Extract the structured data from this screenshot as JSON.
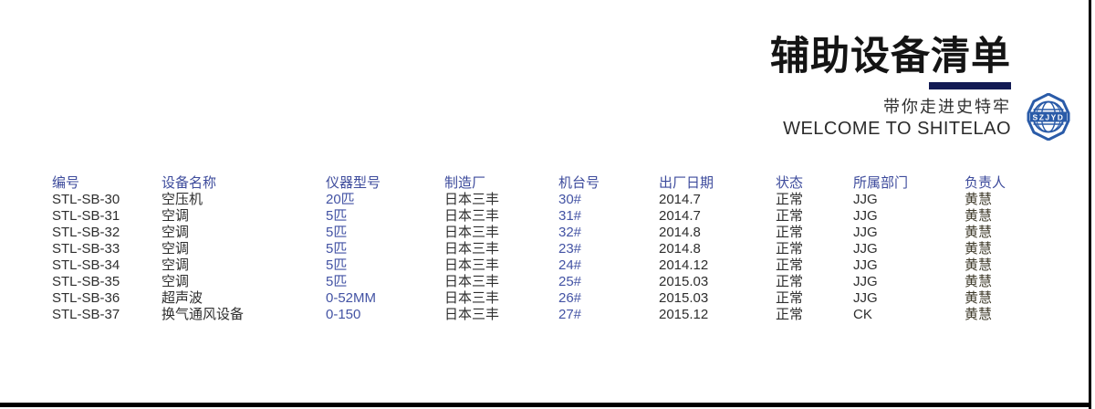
{
  "header": {
    "title": "辅助设备清单",
    "tagline_cn": "带你走进史特牢",
    "tagline_en": "WELCOME TO SHITELAO",
    "logo_text": "SZJYD"
  },
  "colors": {
    "accent_navy": "#131b54",
    "column_header_blue": "#3d4b9c",
    "value_blue": "#4353a4",
    "text_dark": "#2e2e2e",
    "owner_text": "#3e3a2a",
    "logo_blue": "#2a5ba8",
    "border_black": "#000000"
  },
  "table": {
    "columns": [
      {
        "key": "id",
        "label": "编号"
      },
      {
        "key": "name",
        "label": "设备名称"
      },
      {
        "key": "model",
        "label": "仪器型号"
      },
      {
        "key": "maker",
        "label": "制造厂"
      },
      {
        "key": "machine",
        "label": "机台号"
      },
      {
        "key": "date",
        "label": "出厂日期"
      },
      {
        "key": "status",
        "label": "状态"
      },
      {
        "key": "dept",
        "label": "所属部门"
      },
      {
        "key": "owner",
        "label": "负责人"
      }
    ],
    "rows": [
      {
        "id": "STL-SB-30",
        "name": "空压机",
        "model": "20匹",
        "maker": "日本三丰",
        "machine": "30#",
        "date": "2014.7",
        "status": "正常",
        "dept": "JJG",
        "owner": "黄慧"
      },
      {
        "id": "STL-SB-31",
        "name": "空调",
        "model": "5匹",
        "maker": "日本三丰",
        "machine": "31#",
        "date": "2014.7",
        "status": "正常",
        "dept": "JJG",
        "owner": "黄慧"
      },
      {
        "id": "STL-SB-32",
        "name": "空调",
        "model": "5匹",
        "maker": "日本三丰",
        "machine": "32#",
        "date": "2014.8",
        "status": "正常",
        "dept": "JJG",
        "owner": "黄慧"
      },
      {
        "id": "STL-SB-33",
        "name": "空调",
        "model": "5匹",
        "maker": "日本三丰",
        "machine": "23#",
        "date": "2014.8",
        "status": "正常",
        "dept": "JJG",
        "owner": "黄慧"
      },
      {
        "id": "STL-SB-34",
        "name": "空调",
        "model": "5匹",
        "maker": "日本三丰",
        "machine": "24#",
        "date": "2014.12",
        "status": "正常",
        "dept": "JJG",
        "owner": "黄慧"
      },
      {
        "id": "STL-SB-35",
        "name": "空调",
        "model": "5匹",
        "maker": "日本三丰",
        "machine": "25#",
        "date": "2015.03",
        "status": "正常",
        "dept": "JJG",
        "owner": "黄慧"
      },
      {
        "id": "STL-SB-36",
        "name": "超声波",
        "model": "0-52MM",
        "maker": "日本三丰",
        "machine": "26#",
        "date": "2015.03",
        "status": "正常",
        "dept": "JJG",
        "owner": "黄慧"
      },
      {
        "id": "STL-SB-37",
        "name": "换气通风设备",
        "model": "0-150",
        "maker": "日本三丰",
        "machine": "27#",
        "date": "2015.12",
        "status": "正常",
        "dept": "CK",
        "owner": "黄慧"
      }
    ]
  }
}
